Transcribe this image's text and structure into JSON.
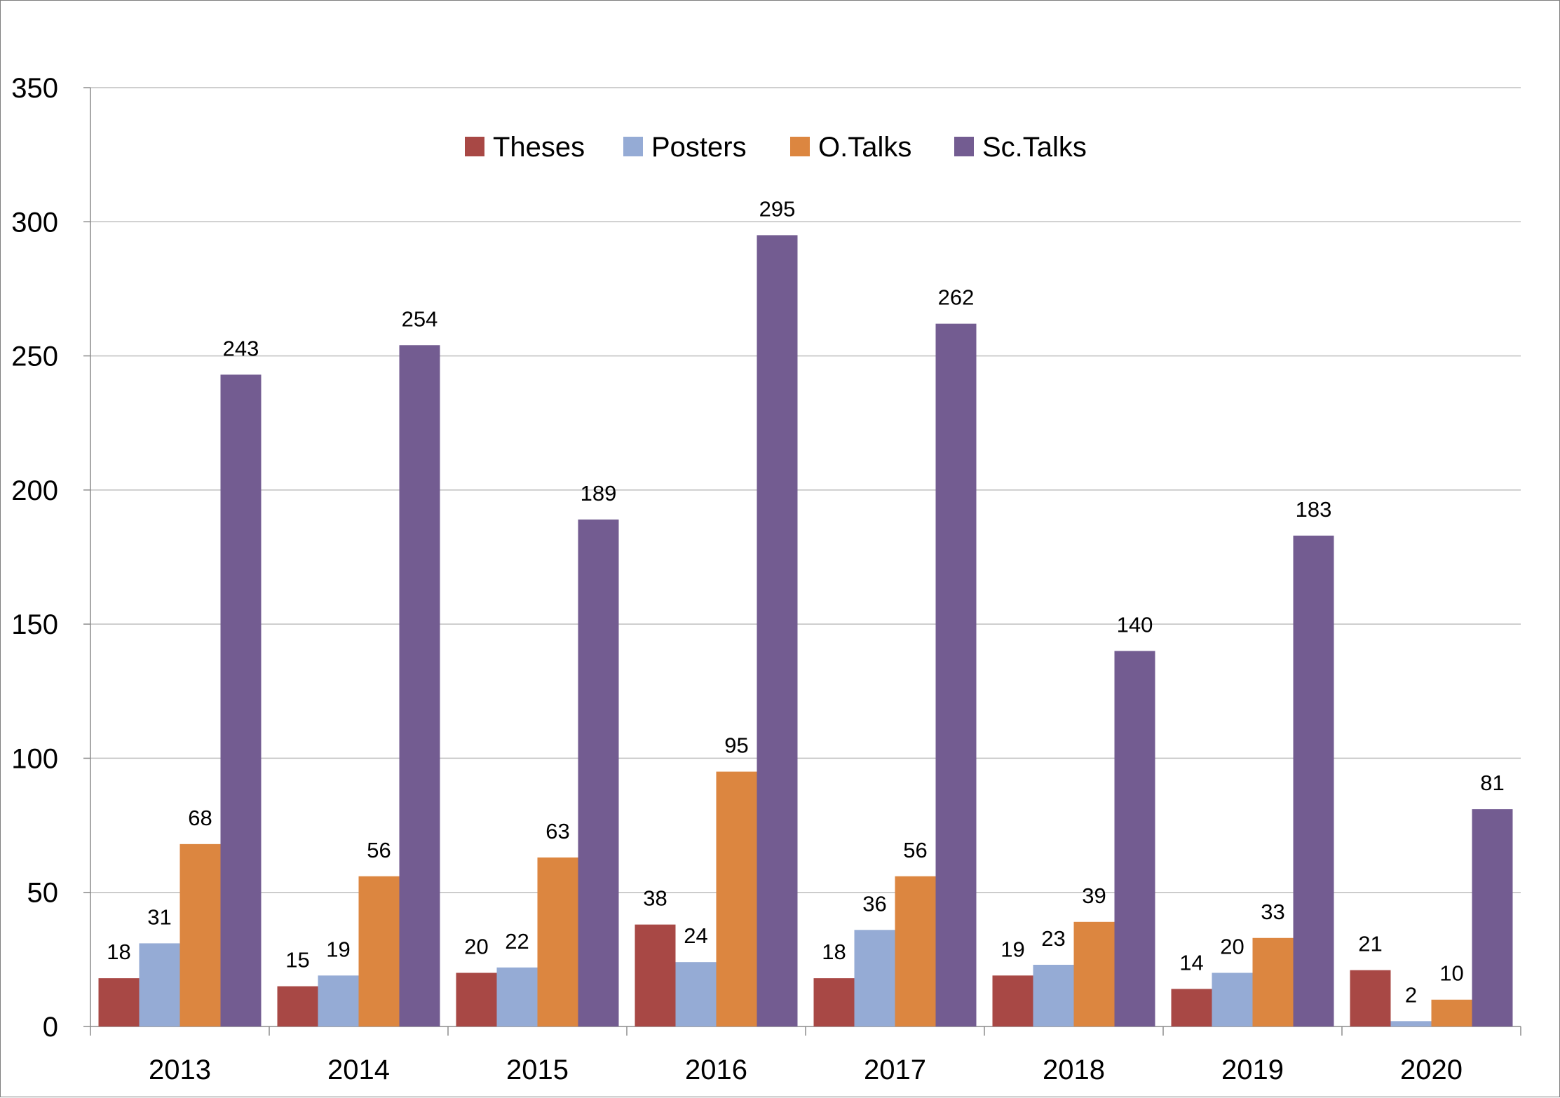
{
  "chart_data": {
    "type": "bar",
    "categories": [
      "2013",
      "2014",
      "2015",
      "2016",
      "2017",
      "2018",
      "2019",
      "2020"
    ],
    "series": [
      {
        "name": "Theses",
        "color": "#A84845",
        "values": [
          18,
          15,
          20,
          38,
          18,
          19,
          14,
          21
        ]
      },
      {
        "name": "Posters",
        "color": "#95ABD5",
        "values": [
          31,
          19,
          22,
          24,
          36,
          23,
          20,
          2
        ]
      },
      {
        "name": "O.Talks",
        "color": "#DC8640",
        "values": [
          68,
          56,
          63,
          95,
          56,
          39,
          33,
          10
        ]
      },
      {
        "name": "Sc.Talks",
        "color": "#735C91",
        "values": [
          243,
          254,
          189,
          295,
          262,
          140,
          183,
          81
        ]
      }
    ],
    "ylim": [
      0,
      350
    ],
    "yticks": [
      0,
      50,
      100,
      150,
      200,
      250,
      300,
      350
    ],
    "grid": true,
    "legend_position": "top-center",
    "data_labels": true
  }
}
